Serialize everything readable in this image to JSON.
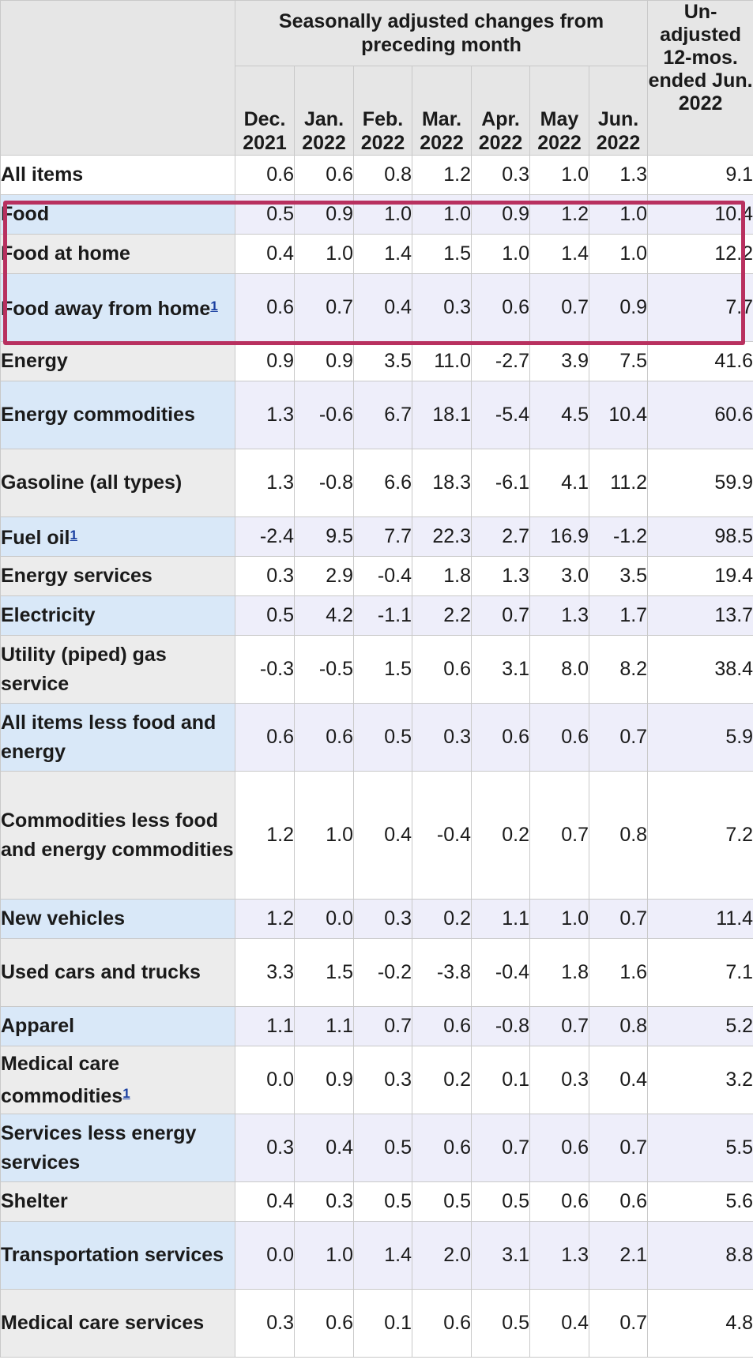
{
  "header": {
    "group_title": "Seasonally adjusted changes from preceding month",
    "unadjusted_title": "Un-adjusted 12-mos. ended Jun. 2022",
    "months": [
      "Dec. 2021",
      "Jan. 2022",
      "Feb. 2022",
      "Mar. 2022",
      "Apr. 2022",
      "May 2022",
      "Jun. 2022"
    ]
  },
  "footnote_marker": "1",
  "highlight_color": "#b8305f",
  "rows": [
    {
      "label": "All items",
      "indent": 0,
      "style": "white",
      "values": [
        "0.6",
        "0.6",
        "0.8",
        "1.2",
        "0.3",
        "1.0",
        "1.3",
        "9.1"
      ]
    },
    {
      "label": "Food",
      "indent": 1,
      "style": "blue",
      "values": [
        "0.5",
        "0.9",
        "1.0",
        "1.0",
        "0.9",
        "1.2",
        "1.0",
        "10.4"
      ]
    },
    {
      "label": "Food at home",
      "indent": 2,
      "style": "gray",
      "values": [
        "0.4",
        "1.0",
        "1.4",
        "1.5",
        "1.0",
        "1.4",
        "1.0",
        "12.2"
      ]
    },
    {
      "label": "Food away from home",
      "footnote": true,
      "indent": 2,
      "style": "blue",
      "values": [
        "0.6",
        "0.7",
        "0.4",
        "0.3",
        "0.6",
        "0.7",
        "0.9",
        "7.7"
      ]
    },
    {
      "label": "Energy",
      "indent": 1,
      "style": "gray",
      "values": [
        "0.9",
        "0.9",
        "3.5",
        "11.0",
        "-2.7",
        "3.9",
        "7.5",
        "41.6"
      ]
    },
    {
      "label": "Energy commodities",
      "indent": 2,
      "style": "blue",
      "values": [
        "1.3",
        "-0.6",
        "6.7",
        "18.1",
        "-5.4",
        "4.5",
        "10.4",
        "60.6"
      ]
    },
    {
      "label": "Gasoline (all types)",
      "indent": 3,
      "style": "gray",
      "values": [
        "1.3",
        "-0.8",
        "6.6",
        "18.3",
        "-6.1",
        "4.1",
        "11.2",
        "59.9"
      ]
    },
    {
      "label": "Fuel oil",
      "footnote": true,
      "indent": 3,
      "style": "blue",
      "values": [
        "-2.4",
        "9.5",
        "7.7",
        "22.3",
        "2.7",
        "16.9",
        "-1.2",
        "98.5"
      ]
    },
    {
      "label": "Energy services",
      "indent": 2,
      "style": "gray",
      "values": [
        "0.3",
        "2.9",
        "-0.4",
        "1.8",
        "1.3",
        "3.0",
        "3.5",
        "19.4"
      ]
    },
    {
      "label": "Electricity",
      "indent": 3,
      "style": "blue",
      "values": [
        "0.5",
        "4.2",
        "-1.1",
        "2.2",
        "0.7",
        "1.3",
        "1.7",
        "13.7"
      ]
    },
    {
      "label": "Utility (piped) gas service",
      "indent": 3,
      "style": "gray",
      "values": [
        "-0.3",
        "-0.5",
        "1.5",
        "0.6",
        "3.1",
        "8.0",
        "8.2",
        "38.4"
      ]
    },
    {
      "label": "All items less food and energy",
      "indent": 1,
      "style": "blue",
      "values": [
        "0.6",
        "0.6",
        "0.5",
        "0.3",
        "0.6",
        "0.6",
        "0.7",
        "5.9"
      ]
    },
    {
      "label": "Commodities less food and energy commodities",
      "indent": 2,
      "style": "gray",
      "values": [
        "1.2",
        "1.0",
        "0.4",
        "-0.4",
        "0.2",
        "0.7",
        "0.8",
        "7.2"
      ]
    },
    {
      "label": "New vehicles",
      "indent": 3,
      "style": "blue",
      "values": [
        "1.2",
        "0.0",
        "0.3",
        "0.2",
        "1.1",
        "1.0",
        "0.7",
        "11.4"
      ]
    },
    {
      "label": "Used cars and trucks",
      "indent": 3,
      "style": "gray",
      "values": [
        "3.3",
        "1.5",
        "-0.2",
        "-3.8",
        "-0.4",
        "1.8",
        "1.6",
        "7.1"
      ]
    },
    {
      "label": "Apparel",
      "indent": 3,
      "style": "blue",
      "values": [
        "1.1",
        "1.1",
        "0.7",
        "0.6",
        "-0.8",
        "0.7",
        "0.8",
        "5.2"
      ]
    },
    {
      "label": "Medical care commodities",
      "footnote": true,
      "indent": 3,
      "style": "gray",
      "values": [
        "0.0",
        "0.9",
        "0.3",
        "0.2",
        "0.1",
        "0.3",
        "0.4",
        "3.2"
      ]
    },
    {
      "label": "Services less energy services",
      "indent": 2,
      "style": "blue",
      "values": [
        "0.3",
        "0.4",
        "0.5",
        "0.6",
        "0.7",
        "0.6",
        "0.7",
        "5.5"
      ]
    },
    {
      "label": "Shelter",
      "indent": 3,
      "style": "gray",
      "values": [
        "0.4",
        "0.3",
        "0.5",
        "0.5",
        "0.5",
        "0.6",
        "0.6",
        "5.6"
      ]
    },
    {
      "label": "Transportation services",
      "indent": 3,
      "style": "blue",
      "values": [
        "0.0",
        "1.0",
        "1.4",
        "2.0",
        "3.1",
        "1.3",
        "2.1",
        "8.8"
      ]
    },
    {
      "label": "Medical care services",
      "indent": 3,
      "style": "gray",
      "values": [
        "0.3",
        "0.6",
        "0.1",
        "0.6",
        "0.5",
        "0.4",
        "0.7",
        "4.8"
      ]
    }
  ]
}
